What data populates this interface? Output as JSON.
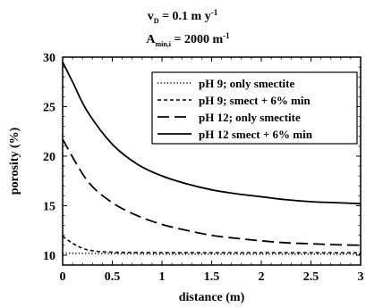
{
  "chart_data": {
    "type": "line",
    "title": {
      "line1": {
        "main": "v",
        "sub": "D",
        "rest": " = 0.1 m y",
        "sup": "-1"
      },
      "line2": {
        "main": "A",
        "sub": "min,i",
        "rest": " = 2000 m",
        "sup": "-1"
      }
    },
    "xlabel": "distance (m)",
    "ylabel": "porosity (%)",
    "xlim": [
      0,
      3
    ],
    "ylim": [
      9,
      30
    ],
    "xticks": [
      0,
      0.5,
      1,
      1.5,
      2,
      2.5,
      3
    ],
    "xtick_labels": [
      "0",
      "0.5",
      "1",
      "1.5",
      "2",
      "2.5",
      "3"
    ],
    "yticks": [
      10,
      15,
      20,
      25,
      30
    ],
    "ytick_labels": [
      "10",
      "15",
      "20",
      "25",
      "30"
    ],
    "legend_position": "top-right",
    "grid": false,
    "series": [
      {
        "name": "pH 9; only smectite",
        "style": "dotted",
        "x": [
          0,
          0.5,
          1,
          1.5,
          2,
          2.5,
          3
        ],
        "y": [
          10.2,
          10.15,
          10.1,
          10.1,
          10.1,
          10.1,
          10.1
        ]
      },
      {
        "name": "pH 9; smect + 6% min",
        "style": "dashed",
        "x": [
          0,
          0.1,
          0.2,
          0.3,
          0.5,
          1,
          1.5,
          2,
          2.5,
          3
        ],
        "y": [
          11.9,
          11.2,
          10.7,
          10.45,
          10.3,
          10.25,
          10.25,
          10.25,
          10.25,
          10.25
        ]
      },
      {
        "name": "pH 12; only smectite",
        "style": "longdash",
        "x": [
          0,
          0.25,
          0.5,
          0.75,
          1,
          1.25,
          1.5,
          1.75,
          2,
          2.25,
          2.5,
          2.75,
          3
        ],
        "y": [
          21.7,
          17.5,
          15.3,
          14.0,
          13.1,
          12.5,
          12.0,
          11.7,
          11.45,
          11.25,
          11.15,
          11.05,
          11.0
        ]
      },
      {
        "name": "pH 12 smect + 6% min",
        "style": "solid",
        "x": [
          0,
          0.1,
          0.25,
          0.5,
          0.75,
          1,
          1.25,
          1.5,
          1.75,
          2,
          2.25,
          2.5,
          2.75,
          3
        ],
        "y": [
          29.5,
          27.5,
          24.5,
          21.2,
          19.2,
          18.0,
          17.2,
          16.6,
          16.2,
          15.9,
          15.6,
          15.4,
          15.3,
          15.2
        ]
      }
    ]
  }
}
